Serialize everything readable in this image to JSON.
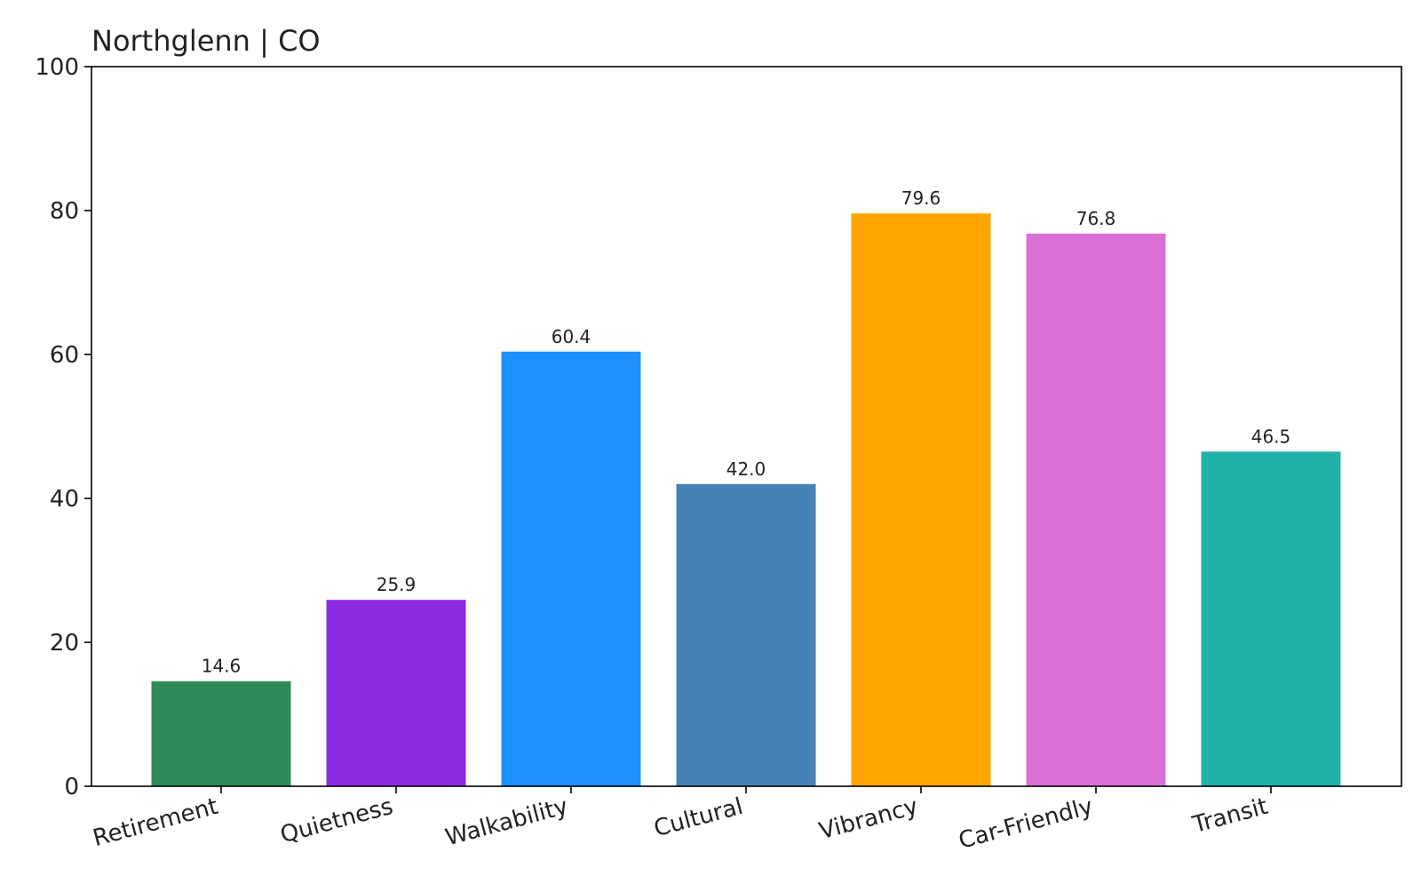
{
  "chart_data": {
    "type": "bar",
    "title": "Northglenn | CO",
    "xlabel": "",
    "ylabel": "",
    "ylim": [
      0,
      100
    ],
    "yticks": [
      0,
      20,
      40,
      60,
      80,
      100
    ],
    "grid": false,
    "categories": [
      "Retirement",
      "Quietness",
      "Walkability",
      "Cultural",
      "Vibrancy",
      "Car-Friendly",
      "Transit"
    ],
    "values": [
      14.6,
      25.9,
      60.4,
      42.0,
      79.6,
      76.8,
      46.5
    ],
    "value_labels": [
      "14.6",
      "25.9",
      "60.4",
      "42.0",
      "79.6",
      "76.8",
      "46.5"
    ],
    "colors": [
      "#2e8b57",
      "#8a2be2",
      "#1e90ff",
      "#4682b4",
      "#ffa500",
      "#da70d6",
      "#20b2aa"
    ]
  }
}
